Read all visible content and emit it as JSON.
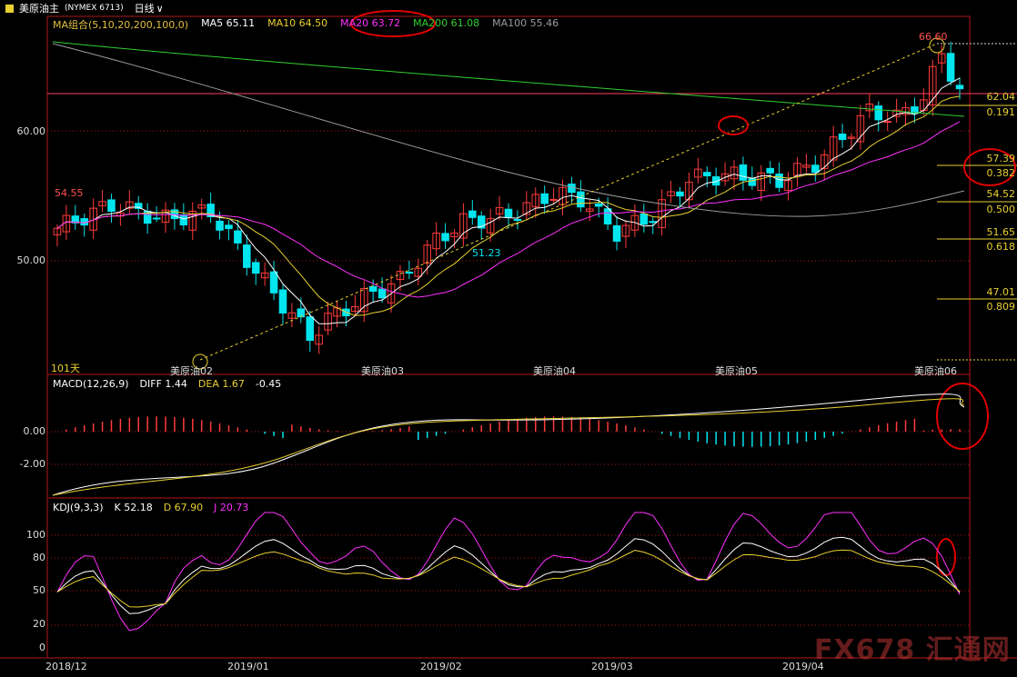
{
  "header": {
    "symbol_label": "美原油主",
    "symbol_code": "(NYMEX 6713)",
    "period": "日线",
    "period_arrow": "∨"
  },
  "ma_row": [
    {
      "label": "MA组合(5,10,20,200,100,0)",
      "color": "#e0c040"
    },
    {
      "label": "MA5 65.11",
      "color": "#ffffff"
    },
    {
      "label": "MA10 64.50",
      "color": "#e8d030"
    },
    {
      "label": "MA20 63.72",
      "color": "#ff30ff"
    },
    {
      "label": "MA200 61.08",
      "color": "#30d030"
    },
    {
      "label": "MA100 55.46",
      "color": "#9a9a9a"
    }
  ],
  "price_axis": [
    "60.00",
    "50.00"
  ],
  "price_annotations": {
    "high": "66.60",
    "left": "54.55",
    "mid": "51.23",
    "days": "101天"
  },
  "fib_levels": [
    {
      "price": "62.04",
      "ratio": "0.191"
    },
    {
      "price": "57.39",
      "ratio": "0.382"
    },
    {
      "price": "54.52",
      "ratio": "0.500"
    },
    {
      "price": "51.65",
      "ratio": "0.618"
    },
    {
      "price": "47.01",
      "ratio": "0.809"
    }
  ],
  "month_tags": [
    "美原油02",
    "美原油03",
    "美原油04",
    "美原油05",
    "美原油06"
  ],
  "macd": {
    "title": "MACD(12,26,9)",
    "diff": "DIFF 1.44",
    "dea": "DEA 1.67",
    "macd": "-0.45",
    "axis": [
      "0.00",
      "-2.00"
    ]
  },
  "kdj": {
    "title": "KDJ(9,3,3)",
    "k": "K 52.18",
    "d": "D 67.90",
    "j": "J 20.73",
    "axis": [
      "100",
      "80",
      "50",
      "20",
      "0"
    ]
  },
  "x_axis": [
    "2018/12",
    "2019/01",
    "2019/02",
    "2019/03",
    "2019/04"
  ],
  "watermark": "FX678 汇通网",
  "colors": {
    "up": "#ff3b3b",
    "down": "#00e5ee",
    "frame": "#b01818",
    "ma5": "#ffffff",
    "ma10": "#e8d030",
    "ma20": "#ff30ff",
    "ma200": "#30d030",
    "ma100": "#9a9a9a",
    "fib": "#e8d030",
    "annotation": "#e00000"
  }
}
